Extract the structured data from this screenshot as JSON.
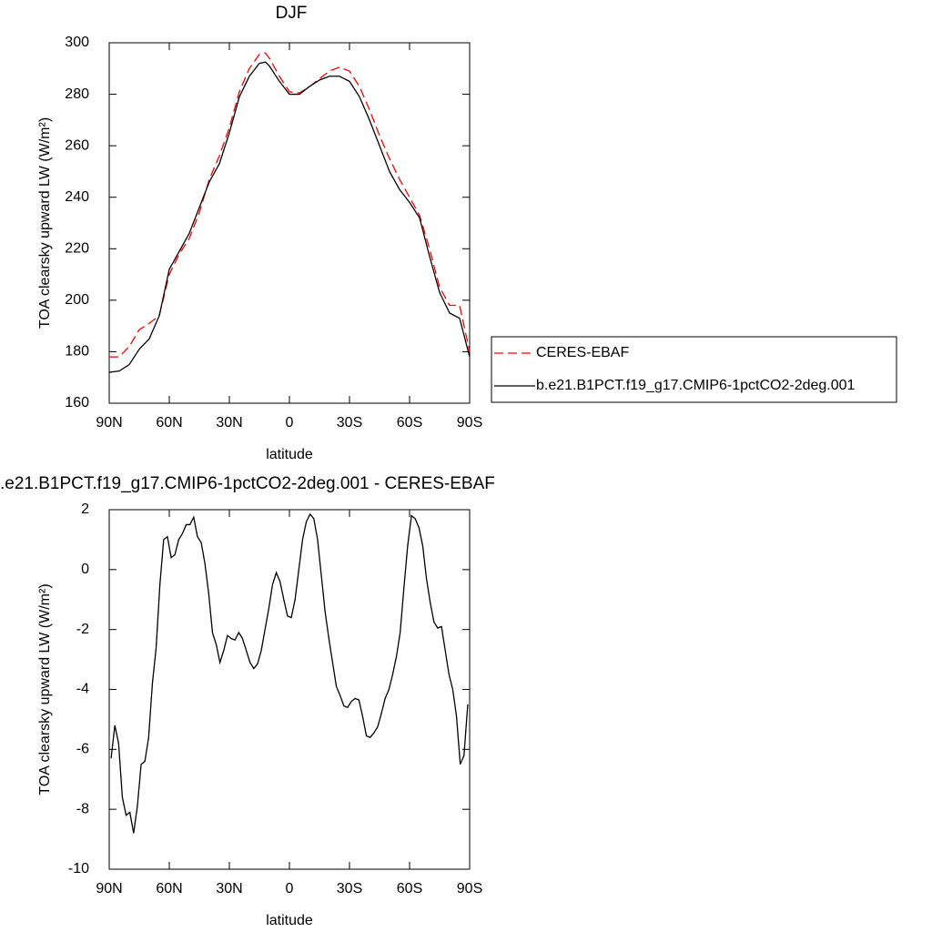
{
  "chart_data": [
    {
      "type": "line",
      "title": "DJF",
      "xlabel": "latitude",
      "ylabel": "TOA clearsky upward LW (W/m²)",
      "x": [
        90,
        85,
        80,
        75,
        70,
        65,
        60,
        55,
        50,
        45,
        40,
        35,
        30,
        25,
        20,
        15,
        12,
        10,
        5,
        0,
        -5,
        -10,
        -15,
        -20,
        -25,
        -30,
        -35,
        -40,
        -45,
        -50,
        -55,
        -60,
        -65,
        -70,
        -75,
        -80,
        -85,
        -90
      ],
      "series": [
        {
          "name": "CERES-EBAF",
          "color": "#ff0000",
          "dash": "dashed",
          "values": [
            178,
            178,
            182,
            188.5,
            191,
            194,
            210,
            218,
            224,
            234,
            247,
            256,
            267,
            281,
            290,
            295.5,
            296,
            294,
            287,
            281,
            280.5,
            283,
            286,
            289,
            290.5,
            289,
            283,
            274,
            264,
            255,
            247,
            240,
            233,
            220,
            205,
            198,
            198,
            180
          ]
        },
        {
          "name": "b.e21.B1PCT.f19_g17.CMIP6-1pctCO2-2deg.001",
          "color": "#000000",
          "dash": "solid",
          "values": [
            172,
            172.5,
            175,
            181,
            185,
            194,
            212,
            219,
            226,
            236,
            246,
            253,
            265,
            279,
            287,
            292,
            292.5,
            291,
            285,
            280,
            280,
            283,
            285.5,
            287,
            287,
            285,
            279,
            270,
            260,
            250,
            243,
            238,
            232,
            217,
            203,
            195,
            193,
            178
          ]
        }
      ],
      "xlim": [
        90,
        -90
      ],
      "xticks": [
        {
          "value": 90,
          "label": "90N"
        },
        {
          "value": 60,
          "label": "60N"
        },
        {
          "value": 30,
          "label": "30N"
        },
        0,
        {
          "value": -30,
          "label": "30S"
        },
        {
          "value": -60,
          "label": "60S"
        },
        {
          "value": -90,
          "label": "90S"
        }
      ],
      "ylim": [
        160,
        300
      ],
      "yticks": [
        160,
        180,
        200,
        220,
        240,
        260,
        280,
        300
      ],
      "legend": "right"
    },
    {
      "type": "line",
      "title": ".e21.B1PCT.f19_g17.CMIP6-1pctCO2-2deg.001 - CERES-EBAF",
      "xlabel": "latitude",
      "ylabel": "TOA clearsky upward LW (W/m²)",
      "x": [
        89.06,
        87.19,
        85.31,
        83.44,
        81.56,
        79.69,
        77.81,
        75.94,
        74.06,
        72.19,
        70.31,
        68.44,
        66.56,
        64.69,
        62.81,
        60.94,
        59.06,
        57.19,
        55.31,
        53.44,
        51.56,
        49.69,
        47.81,
        45.94,
        44.06,
        42.19,
        40.31,
        38.44,
        36.56,
        34.69,
        32.81,
        30.94,
        29.06,
        27.19,
        25.31,
        23.44,
        21.56,
        19.69,
        17.81,
        15.94,
        14.06,
        12.19,
        10.31,
        8.44,
        6.56,
        4.69,
        2.81,
        0.94,
        -0.94,
        -2.81,
        -4.69,
        -6.56,
        -8.44,
        -10.31,
        -12.19,
        -14.06,
        -15.94,
        -17.81,
        -19.69,
        -21.56,
        -23.44,
        -25.31,
        -27.19,
        -29.06,
        -30.94,
        -32.81,
        -34.69,
        -36.56,
        -38.44,
        -40.31,
        -42.19,
        -44.06,
        -45.94,
        -47.81,
        -49.69,
        -51.56,
        -53.44,
        -55.31,
        -57.19,
        -59.06,
        -60.94,
        -62.81,
        -64.69,
        -66.56,
        -68.44,
        -70.31,
        -72.19,
        -74.06,
        -75.94,
        -77.81,
        -79.69,
        -81.56,
        -83.44,
        -85.31,
        -87.19,
        -89.06
      ],
      "values": [
        -6.3,
        -5.2,
        -5.8,
        -7.6,
        -8.2,
        -8.1,
        -8.8,
        -7.9,
        -6.5,
        -6.4,
        -5.6,
        -3.8,
        -2.6,
        -0.5,
        1.0,
        1.1,
        0.4,
        0.5,
        1.0,
        1.2,
        1.5,
        1.5,
        1.75,
        1.1,
        0.9,
        0.2,
        -0.8,
        -2.1,
        -2.5,
        -3.1,
        -2.7,
        -2.2,
        -2.3,
        -2.35,
        -2.1,
        -2.3,
        -2.7,
        -3.1,
        -3.3,
        -3.15,
        -2.7,
        -2.0,
        -1.3,
        -0.5,
        -0.1,
        -0.4,
        -1.0,
        -1.55,
        -1.6,
        -1.0,
        0.0,
        1.0,
        1.6,
        1.85,
        1.7,
        1.0,
        -0.2,
        -1.4,
        -2.3,
        -3.1,
        -3.9,
        -4.2,
        -4.55,
        -4.6,
        -4.4,
        -4.3,
        -4.35,
        -4.9,
        -5.55,
        -5.6,
        -5.45,
        -5.25,
        -4.8,
        -4.3,
        -4.0,
        -3.5,
        -2.9,
        -2.1,
        -0.6,
        0.8,
        1.8,
        1.7,
        1.4,
        0.8,
        -0.3,
        -1.1,
        -1.75,
        -1.95,
        -1.9,
        -2.7,
        -3.5,
        -4.0,
        -4.9,
        -6.5,
        -6.2,
        -4.5
      ],
      "color": "#000000",
      "xlim": [
        90,
        -90
      ],
      "xticks": [
        {
          "value": 90,
          "label": "90N"
        },
        {
          "value": 60,
          "label": "60N"
        },
        {
          "value": 30,
          "label": "30N"
        },
        0,
        {
          "value": -30,
          "label": "30S"
        },
        {
          "value": -60,
          "label": "60S"
        },
        {
          "value": -90,
          "label": "90S"
        }
      ],
      "ylim": [
        -10,
        2
      ],
      "yticks": [
        -10,
        -8,
        -6,
        -4,
        -2,
        0,
        2
      ]
    }
  ]
}
